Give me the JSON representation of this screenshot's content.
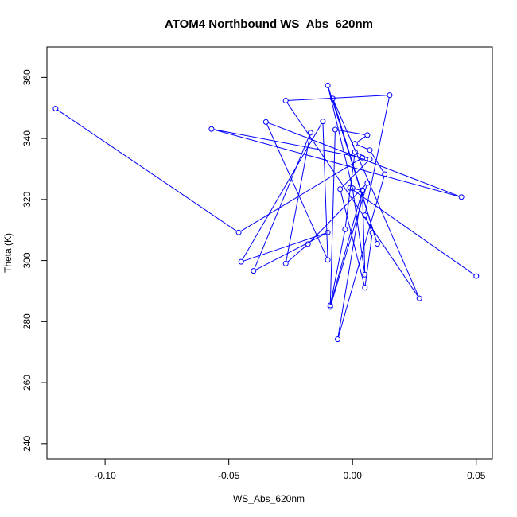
{
  "chart_data": {
    "type": "line",
    "title": "ATOM4 Northbound WS_Abs_620nm",
    "xlabel": "WS_Abs_620nm",
    "ylabel": "Theta (K)",
    "xlim": [
      -0.1235,
      0.0565
    ],
    "ylim": [
      235,
      370
    ],
    "xticks": [
      -0.1,
      -0.05,
      0.0,
      0.05
    ],
    "xtick_labels": [
      "-0.10",
      "-0.05",
      "0.00",
      "0.05"
    ],
    "yticks": [
      240,
      260,
      280,
      300,
      320,
      340,
      360
    ],
    "ytick_labels": [
      "240",
      "260",
      "280",
      "300",
      "320",
      "340",
      "360"
    ],
    "grid": false,
    "line_color": "#0000ff",
    "marker": "open-circle",
    "series": [
      {
        "points": [
          [
            -0.12,
            349.8
          ],
          [
            -0.046,
            309.2
          ],
          [
            0.004,
            333.7
          ],
          [
            -0.057,
            343.1
          ],
          [
            0.044,
            320.8
          ],
          [
            -0.035,
            345.4
          ],
          [
            -0.01,
            300.2
          ],
          [
            -0.012,
            345.6
          ],
          [
            -0.045,
            299.6
          ],
          [
            -0.01,
            309.2
          ],
          [
            -0.04,
            296.6
          ],
          [
            -0.017,
            341.9
          ],
          [
            -0.027,
            299.0
          ],
          [
            -0.018,
            305.4
          ],
          [
            0.006,
            325.4
          ],
          [
            -0.009,
            284.8
          ],
          [
            -0.007,
            342.9
          ],
          [
            0.006,
            341.1
          ],
          [
            0.001,
            338.3
          ],
          [
            0.007,
            336.2
          ],
          [
            0.013,
            328.3
          ],
          [
            -0.006,
            274.2
          ],
          [
            0.004,
            323.1
          ],
          [
            -0.009,
            285.3
          ],
          [
            -0.003,
            310.2
          ],
          [
            0.001,
            335.6
          ],
          [
            0.007,
            333.2
          ],
          [
            -0.005,
            323.4
          ],
          [
            0.005,
            291.1
          ],
          [
            0.008,
            309.1
          ],
          [
            0.005,
            314.8
          ],
          [
            0.015,
            354.2
          ],
          [
            -0.027,
            352.4
          ],
          [
            0.027,
            287.6
          ],
          [
            -0.008,
            353.1
          ],
          [
            0.01,
            305.5
          ],
          [
            -0.01,
            357.4
          ],
          [
            0.0,
            323.7
          ],
          [
            0.005,
            295.4
          ],
          [
            0.004,
            322.9
          ],
          [
            -0.001,
            323.8
          ],
          [
            0.05,
            294.9
          ]
        ]
      }
    ]
  }
}
